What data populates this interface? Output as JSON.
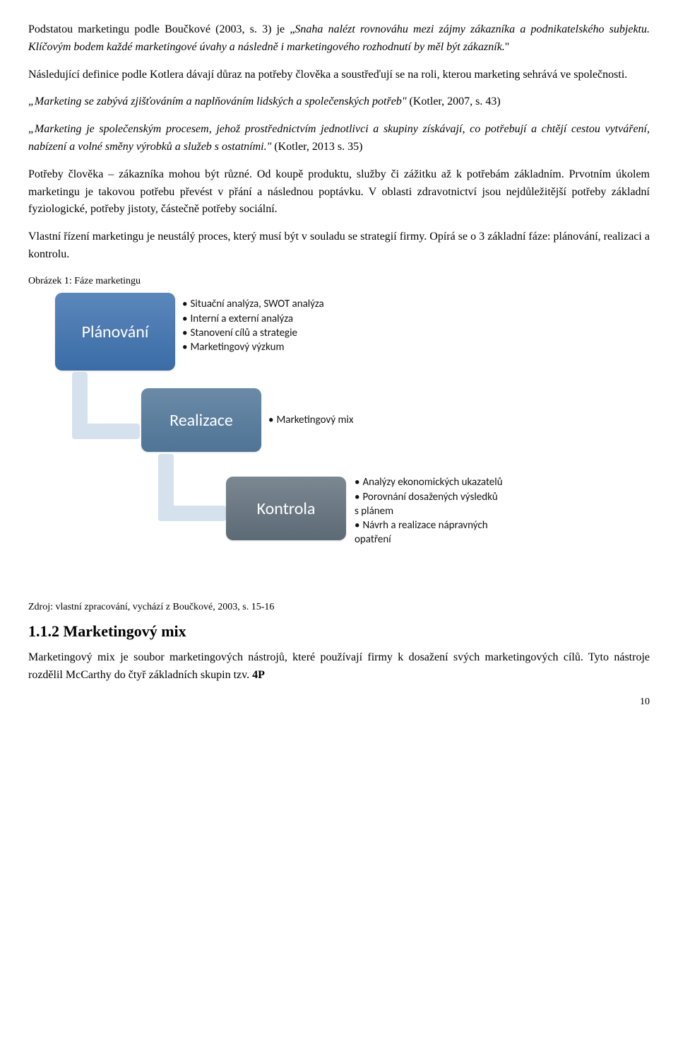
{
  "paragraphs": {
    "p1a": "Podstatou marketingu podle Boučkové (2003, s. 3) je „",
    "p1_italic": "Snaha nalézt rovnováhu mezi zájmy zákazníka a podnikatelského subjektu. Klíčovým bodem každé marketingové úvahy a následně i marketingového rozhodnutí by měl být zákazník.",
    "p1b": "\"",
    "p2": "Následující definice podle Kotlera dávají důraz na potřeby člověka a soustřeďují se na roli, kterou marketing sehrává ve společnosti.",
    "p3_italic": "„Marketing se zabývá zjišťováním a naplňováním lidských a společenských potřeb\"",
    "p3_tail": "(Kotler, 2007, s. 43)",
    "p4_italic": "„Marketing je společenským procesem, jehož prostřednictvím jednotlivci a skupiny získávají, co potřebují a chtějí cestou vytváření, nabízení a volné směny výrobků a služeb s ostatními.\"",
    "p4_tail": "(Kotler, 2013 s. 35)",
    "p5": "Potřeby člověka – zákazníka mohou být různé. Od koupě produktu, služby či zážitku až k potřebám základním. Prvotním úkolem marketingu je takovou potřebu převést v přání a následnou poptávku. V oblasti zdravotnictví jsou nejdůležitější potřeby základní fyziologické, potřeby jistoty, částečně potřeby sociální.",
    "p6": "Vlastní řízení marketingu je neustálý proces, který musí být v souladu se strategií firmy. Opírá se o 3 základní fáze: plánování, realizaci a kontrolu.",
    "caption": "Obrázek 1: Fáze marketingu",
    "source": "Zdroj: vlastní zpracování, vychází z Boučkové, 2003, s. 15-16",
    "h2": "1.1.2  Marketingový mix",
    "p7": "Marketingový mix je soubor marketingových nástrojů, které používají firmy k dosažení svých marketingových cílů. Tyto nástroje rozdělil McCarthy do čtyř základních skupin tzv. ",
    "p7_bold": "4P",
    "page_number": "10"
  },
  "diagram": {
    "type": "flowchart",
    "background": "#ffffff",
    "connector_color": "#d6e1ee",
    "font_family": "Calibri, Arial, sans-serif",
    "title_fontsize": 24,
    "bullet_fontsize": 15,
    "phases": [
      {
        "label": "Plánování",
        "box_gradient_top": "#5b87bb",
        "box_gradient_bottom": "#3b6ca6",
        "bullets": [
          "Situační analýza, SWOT analýza",
          "Interní a externí analýza",
          "Stanovení cílů a strategie",
          "Marketingový výzkum"
        ]
      },
      {
        "label": "Realizace",
        "box_gradient_top": "#6b8aa7",
        "box_gradient_bottom": "#4f7496",
        "bullets": [
          "Marketingový mix"
        ]
      },
      {
        "label": "Kontrola",
        "box_gradient_top": "#7b8892",
        "box_gradient_bottom": "#5c6a76",
        "bullets": [
          "Analýzy ekonomických ukazatelů",
          "Porovnání dosažených výsledků s plánem",
          "Návrh a realizace nápravných opatření"
        ]
      }
    ]
  }
}
